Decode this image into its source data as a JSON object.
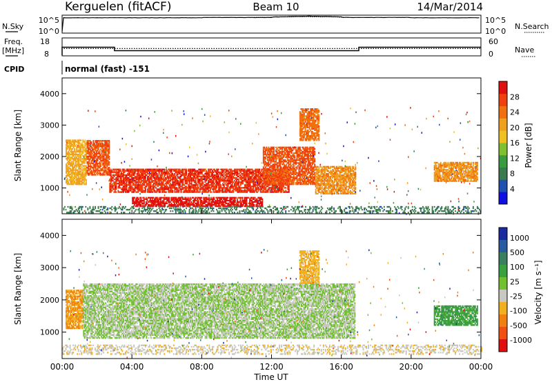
{
  "header": {
    "station": "Kerguelen (fitACF)",
    "beam": "Beam 10",
    "date": "14/Mar/2014"
  },
  "noise_panel": {
    "left_label": "N.Sky",
    "right_label": "N.Search",
    "y_ticks_left": [
      "10^5",
      "10^0"
    ],
    "y_ticks_right": [
      "10^5",
      "10^0"
    ]
  },
  "freq_panel": {
    "left_label_1": "Freq.",
    "left_label_2": "[MHz]",
    "right_label": "Nave",
    "y_ticks_left": [
      "18",
      "8"
    ],
    "y_ticks_right": [
      "60",
      "0"
    ]
  },
  "cpid_panel": {
    "label": "CPID",
    "text": "normal (fast) -151"
  },
  "x_axis": {
    "label": "Time UT",
    "ticks": [
      "00:00",
      "04:00",
      "08:00",
      "12:00",
      "16:00",
      "20:00",
      "00:00"
    ]
  },
  "power_panel": {
    "ylabel": "Slant Range [km]",
    "y_ticks": [
      "1000",
      "2000",
      "3000",
      "4000"
    ],
    "colorbar_label": "Power [dB]",
    "colorbar_ticks": [
      "4",
      "8",
      "12",
      "16",
      "20",
      "24",
      "28"
    ],
    "colors": [
      "#1010e0",
      "#2050b0",
      "#3a7a50",
      "#3a9a40",
      "#80c030",
      "#f0c020",
      "#f0a020",
      "#f07010",
      "#f04010",
      "#e01010"
    ]
  },
  "velocity_panel": {
    "ylabel": "Slant Range [km]",
    "y_ticks": [
      "1000",
      "2000",
      "3000",
      "4000"
    ],
    "colorbar_label": "Velocity [m s⁻¹]",
    "colorbar_ticks": [
      "1000",
      "500",
      "100",
      "25",
      "-25",
      "-100",
      "-500",
      "-1000"
    ],
    "colors": [
      "#1a2aa0",
      "#2a5aa0",
      "#3a8060",
      "#3aa040",
      "#70c030",
      "#c8c8c0",
      "#f0b020",
      "#f08010",
      "#f05010",
      "#e01010"
    ]
  },
  "chart_data": {
    "type": "heatmap",
    "title": "Kerguelen (fitACF) Beam 10 14/Mar/2014",
    "xlabel": "Time UT",
    "ylabel": "Slant Range [km]",
    "x_range_hours": [
      0,
      24
    ],
    "y_range_km": [
      180,
      4500
    ],
    "panels": [
      {
        "name": "Power",
        "unit": "dB",
        "color_range": [
          0,
          32
        ],
        "regions": [
          {
            "t": [
              0.2,
              1.4
            ],
            "r": [
              1100,
              2500
            ],
            "value": 20
          },
          {
            "t": [
              1.4,
              2.7
            ],
            "r": [
              1400,
              2500
            ],
            "value": 26
          },
          {
            "t": [
              2.7,
              13.0
            ],
            "r": [
              850,
              1600
            ],
            "value": 28
          },
          {
            "t": [
              4.0,
              11.5
            ],
            "r": [
              400,
              700
            ],
            "value": 30
          },
          {
            "t": [
              11.5,
              14.5
            ],
            "r": [
              1100,
              2300
            ],
            "value": 26
          },
          {
            "t": [
              14.5,
              16.8
            ],
            "r": [
              800,
              1700
            ],
            "value": 22
          },
          {
            "t": [
              13.6,
              14.7
            ],
            "r": [
              2500,
              3500
            ],
            "value": 24
          },
          {
            "t": [
              21.3,
              23.8
            ],
            "r": [
              1200,
              1800
            ],
            "value": 22
          },
          {
            "t": [
              0.0,
              24.0
            ],
            "r": [
              200,
              400
            ],
            "value": 8
          }
        ]
      },
      {
        "name": "Velocity",
        "unit": "m/s",
        "color_range": [
          -1000,
          1000
        ],
        "regions": [
          {
            "t": [
              0.2,
              1.2
            ],
            "r": [
              1100,
              2300
            ],
            "value": -400
          },
          {
            "t": [
              1.2,
              16.8
            ],
            "r": [
              800,
              2500
            ],
            "value": 0
          },
          {
            "t": [
              13.6,
              14.7
            ],
            "r": [
              2500,
              3500
            ],
            "value": -300
          },
          {
            "t": [
              21.3,
              23.8
            ],
            "r": [
              1200,
              1800
            ],
            "value": 300
          },
          {
            "t": [
              0.0,
              24.0
            ],
            "r": [
              300,
              600
            ],
            "value": -150
          }
        ]
      }
    ],
    "noise_sky_log": [
      0,
      4.6,
      4.6,
      4.7,
      4.9,
      4.7,
      4.6
    ],
    "frequency_mhz": {
      "t": [
        0,
        3,
        3,
        17,
        17,
        24
      ],
      "f": [
        12.8,
        12.8,
        10.7,
        10.7,
        12.8,
        12.8
      ]
    },
    "nave": 24
  }
}
